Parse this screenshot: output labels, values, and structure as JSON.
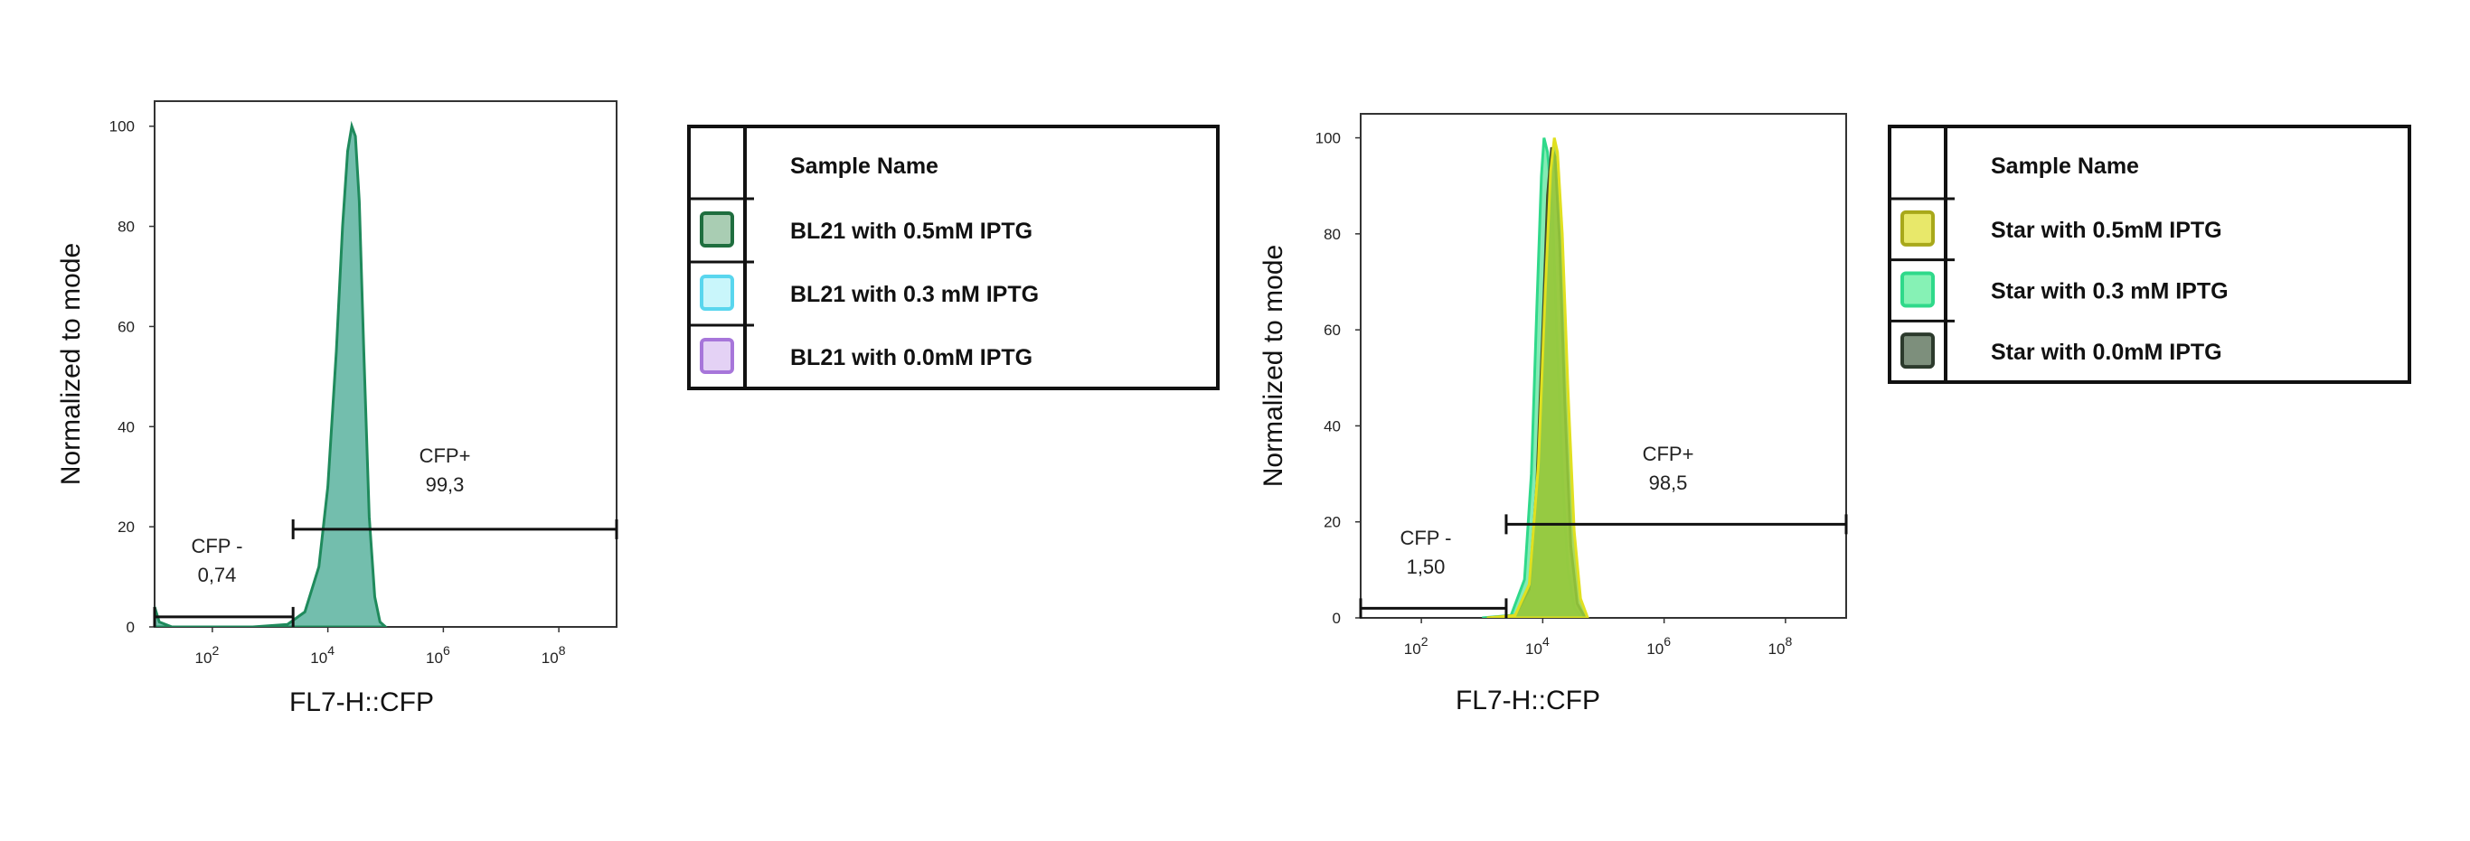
{
  "chart_data": [
    {
      "type": "histogram",
      "xlabel": "FL7-H::CFP",
      "ylabel": "Normalized to mode",
      "x_scale": "log",
      "xlim": [
        10,
        1000000000
      ],
      "ylim": [
        0,
        105
      ],
      "x_ticks": [
        {
          "value": 100,
          "base": "10",
          "exp": "2"
        },
        {
          "value": 10000,
          "base": "10",
          "exp": "4"
        },
        {
          "value": 1000000,
          "base": "10",
          "exp": "6"
        },
        {
          "value": 100000000,
          "base": "10",
          "exp": "8"
        }
      ],
      "y_ticks": [
        {
          "value": 0,
          "label": "0"
        },
        {
          "value": 20,
          "label": "20"
        },
        {
          "value": 40,
          "label": "40"
        },
        {
          "value": 60,
          "label": "60"
        },
        {
          "value": 80,
          "label": "80"
        },
        {
          "value": 100,
          "label": "100"
        }
      ],
      "series": [
        {
          "name": "BL21 with 0.5mM IPTG",
          "fill": "#5bb39f",
          "stroke": "#1f8a5c",
          "points": [
            [
              10,
              4
            ],
            [
              12,
              1
            ],
            [
              20,
              0
            ],
            [
              500,
              0
            ],
            [
              2000,
              0.5
            ],
            [
              4000,
              3
            ],
            [
              7000,
              12
            ],
            [
              10000,
              28
            ],
            [
              14000,
              55
            ],
            [
              18000,
              80
            ],
            [
              22000,
              95
            ],
            [
              26000,
              100
            ],
            [
              30000,
              98
            ],
            [
              35000,
              85
            ],
            [
              42000,
              55
            ],
            [
              52000,
              22
            ],
            [
              65000,
              6
            ],
            [
              80000,
              1
            ],
            [
              100000,
              0
            ]
          ]
        }
      ],
      "gates": [
        {
          "name": "CFP -",
          "value": "0,74",
          "start": 10,
          "end": 2500,
          "y": 2
        },
        {
          "name": "CFP+",
          "value": "99,3",
          "start": 2500,
          "end": 1000000000,
          "y": 19.5
        }
      ],
      "legend": {
        "title": "Sample Name",
        "entries": [
          {
            "label": "BL21 with 0.5mM IPTG",
            "color": "#a9cdb3",
            "border": "#1f6e3f"
          },
          {
            "label": "BL21 with 0.3 mM IPTG",
            "color": "#c9f6fb",
            "border": "#59d6ee"
          },
          {
            "label": "BL21 with 0.0mM IPTG",
            "color": "#e4d2f5",
            "border": "#a776da"
          }
        ]
      }
    },
    {
      "type": "histogram",
      "xlabel": "FL7-H::CFP",
      "ylabel": "Normalized to mode",
      "x_scale": "log",
      "xlim": [
        10,
        1000000000
      ],
      "ylim": [
        0,
        105
      ],
      "x_ticks": [
        {
          "value": 100,
          "base": "10",
          "exp": "2"
        },
        {
          "value": 10000,
          "base": "10",
          "exp": "4"
        },
        {
          "value": 1000000,
          "base": "10",
          "exp": "6"
        },
        {
          "value": 100000000,
          "base": "10",
          "exp": "8"
        }
      ],
      "y_ticks": [
        {
          "value": 0,
          "label": "0"
        },
        {
          "value": 20,
          "label": "20"
        },
        {
          "value": 40,
          "label": "40"
        },
        {
          "value": 60,
          "label": "60"
        },
        {
          "value": 80,
          "label": "80"
        },
        {
          "value": 100,
          "label": "100"
        }
      ],
      "series": [
        {
          "name": "Star with 0.3 mM IPTG",
          "fill": "#6fe8a8",
          "stroke": "#2fd98a",
          "points": [
            [
              1000,
              0
            ],
            [
              3000,
              0.5
            ],
            [
              5000,
              8
            ],
            [
              6500,
              30
            ],
            [
              8000,
              65
            ],
            [
              9500,
              92
            ],
            [
              10500,
              100
            ],
            [
              12000,
              97
            ],
            [
              14500,
              85
            ],
            [
              17000,
              60
            ],
            [
              21000,
              30
            ],
            [
              26000,
              10
            ],
            [
              33000,
              2
            ],
            [
              45000,
              0
            ]
          ]
        },
        {
          "name": "Star with 0.0mM IPTG",
          "fill": "#7a8c55",
          "stroke": "#3f4d2e",
          "points": [
            [
              1200,
              0
            ],
            [
              3500,
              0.5
            ],
            [
              6000,
              6
            ],
            [
              8000,
              28
            ],
            [
              10000,
              60
            ],
            [
              12000,
              88
            ],
            [
              14000,
              98
            ],
            [
              16000,
              96
            ],
            [
              19000,
              78
            ],
            [
              23000,
              45
            ],
            [
              29000,
              15
            ],
            [
              37000,
              3
            ],
            [
              50000,
              0
            ]
          ]
        },
        {
          "name": "Star with 0.5mM IPTG",
          "fill": "#9bd23c",
          "stroke": "#e0e020",
          "points": [
            [
              1200,
              0
            ],
            [
              3500,
              0.5
            ],
            [
              6000,
              7
            ],
            [
              8500,
              32
            ],
            [
              11000,
              68
            ],
            [
              13500,
              93
            ],
            [
              15500,
              100
            ],
            [
              17500,
              97
            ],
            [
              21000,
              80
            ],
            [
              26000,
              48
            ],
            [
              33000,
              18
            ],
            [
              42000,
              4
            ],
            [
              55000,
              0
            ]
          ]
        }
      ],
      "gates": [
        {
          "name": "CFP -",
          "value": "1,50",
          "start": 10,
          "end": 2500,
          "y": 2
        },
        {
          "name": "CFP+",
          "value": "98,5",
          "start": 2500,
          "end": 1000000000,
          "y": 19.5
        }
      ],
      "legend": {
        "title": "Sample Name",
        "entries": [
          {
            "label": "Star with 0.5mM IPTG",
            "color": "#e8e86a",
            "border": "#a8a81a"
          },
          {
            "label": "Star with 0.3 mM IPTG",
            "color": "#86f2b5",
            "border": "#2fd98a"
          },
          {
            "label": "Star with 0.0mM IPTG",
            "color": "#7d8f7c",
            "border": "#2c3a2c"
          }
        ]
      }
    }
  ]
}
